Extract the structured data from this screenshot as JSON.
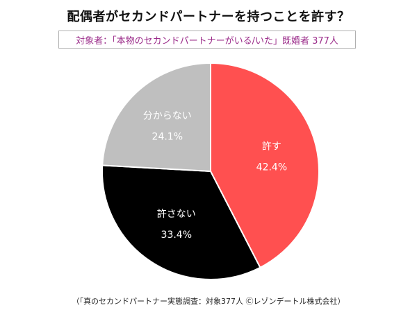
{
  "header": {
    "title": "配偶者がセカンドパートナーを持つことを許す？",
    "subject": "対象者：「本物のセカンドパートナーがいる/いた」既婚者 377人"
  },
  "footer": {
    "source": "（「真のセカンドパートナー実態調査：対象377人 Ⓒレゾンデートル株式会社）"
  },
  "chart_data": {
    "type": "pie",
    "start": "12 o'clock",
    "direction": "clockwise",
    "categories": [
      "許す",
      "許さない",
      "分からない"
    ],
    "values": [
      42.4,
      33.4,
      24.1
    ],
    "value_labels": [
      "42.4%",
      "33.4%",
      "24.1%"
    ],
    "colors": [
      "#ff5050",
      "#000000",
      "#bfbfbf"
    ],
    "label_colors": [
      "#ffffff",
      "#ffffff",
      "#ffffff"
    ]
  }
}
